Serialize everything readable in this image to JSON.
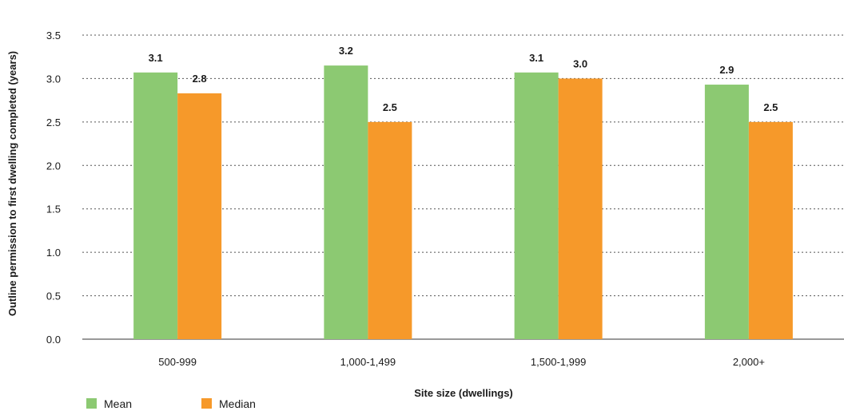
{
  "chart_data": {
    "type": "bar",
    "title": "",
    "xlabel": "Site size (dwellings)",
    "ylabel": "Outline permission to first dwelling completed (years)",
    "categories": [
      "500-999",
      "1,000-1,499",
      "1,500-1,999",
      "2,000+"
    ],
    "series": [
      {
        "name": "Mean",
        "values": [
          3.07,
          3.15,
          3.07,
          2.93
        ],
        "labels": [
          "3.1",
          "3.2",
          "3.1",
          "2.9"
        ],
        "color": "#8cc972"
      },
      {
        "name": "Median",
        "values": [
          2.83,
          2.5,
          3.0,
          2.5
        ],
        "labels": [
          "2.8",
          "2.5",
          "3.0",
          "2.5"
        ],
        "color": "#f6992a"
      }
    ],
    "ylim": [
      0,
      3.5
    ],
    "yticks": [
      "0.0",
      "0.5",
      "1.0",
      "1.5",
      "2.0",
      "2.5",
      "3.0",
      "3.5"
    ],
    "grid": true,
    "legend_position": "bottom-left"
  }
}
